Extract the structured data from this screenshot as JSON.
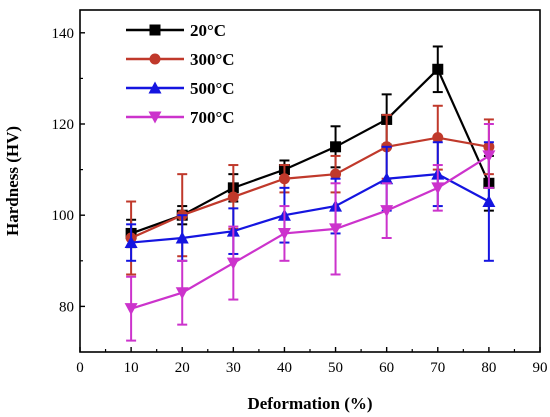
{
  "chart_data": {
    "type": "line",
    "xlabel": "Deformation (%)",
    "ylabel": "Hardness (HV)",
    "xlim": [
      0,
      90
    ],
    "ylim": [
      70,
      145
    ],
    "x_ticks": [
      0,
      10,
      20,
      30,
      40,
      50,
      60,
      70,
      80,
      90
    ],
    "y_ticks": [
      80,
      100,
      120,
      140
    ],
    "grid": false,
    "legend_position": "top-left",
    "x": [
      10,
      20,
      30,
      40,
      50,
      60,
      70,
      80
    ],
    "series": [
      {
        "name": "20°C",
        "color": "#000000",
        "marker": "square",
        "values": [
          96,
          100,
          106,
          110,
          115,
          121,
          132,
          107
        ],
        "errors": [
          3,
          2,
          3,
          2,
          4.5,
          5.5,
          5,
          6
        ]
      },
      {
        "name": "300°C",
        "color": "#c0392b",
        "marker": "circle",
        "values": [
          95,
          100,
          104,
          108,
          109,
          115,
          117,
          115
        ],
        "errors": [
          8,
          9,
          7,
          3,
          4,
          7,
          7,
          6
        ]
      },
      {
        "name": "500°C",
        "color": "#1515e0",
        "marker": "triangle-up",
        "values": [
          94,
          95,
          96.5,
          100,
          102,
          108,
          109,
          103
        ],
        "errors": [
          4,
          5,
          5,
          6,
          6,
          7,
          7,
          13
        ]
      },
      {
        "name": "700°C",
        "color": "#cc33cc",
        "marker": "triangle-down",
        "values": [
          79.5,
          83,
          89.5,
          96,
          97,
          101,
          106,
          113
        ],
        "errors": [
          7,
          7,
          8,
          6,
          10,
          6,
          5,
          7
        ]
      }
    ]
  }
}
